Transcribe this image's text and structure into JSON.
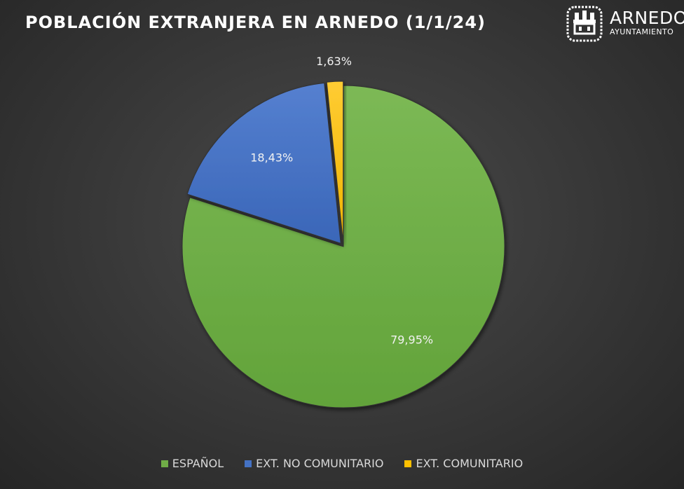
{
  "logo": {
    "name": "ARNEDO",
    "subtitle": "AYUNTAMIENTO"
  },
  "chart_data": {
    "type": "pie",
    "title": "POBLACIÓN EXTRANJERA EN ARNEDO (1/1/24)",
    "slices": [
      {
        "name": "ESPAÑOL",
        "value": 79.95,
        "label": "79,95%",
        "color": "#70ad47"
      },
      {
        "name": "EXT. NO COMUNITARIO",
        "value": 18.43,
        "label": "18,43%",
        "color": "#4472c4"
      },
      {
        "name": "EXT. COMUNITARIO",
        "value": 1.63,
        "label": "1,63%",
        "color": "#ffc000"
      }
    ],
    "legend_position": "bottom",
    "exploded_slices": [
      "EXT. NO COMUNITARIO",
      "EXT. COMUNITARIO"
    ]
  }
}
